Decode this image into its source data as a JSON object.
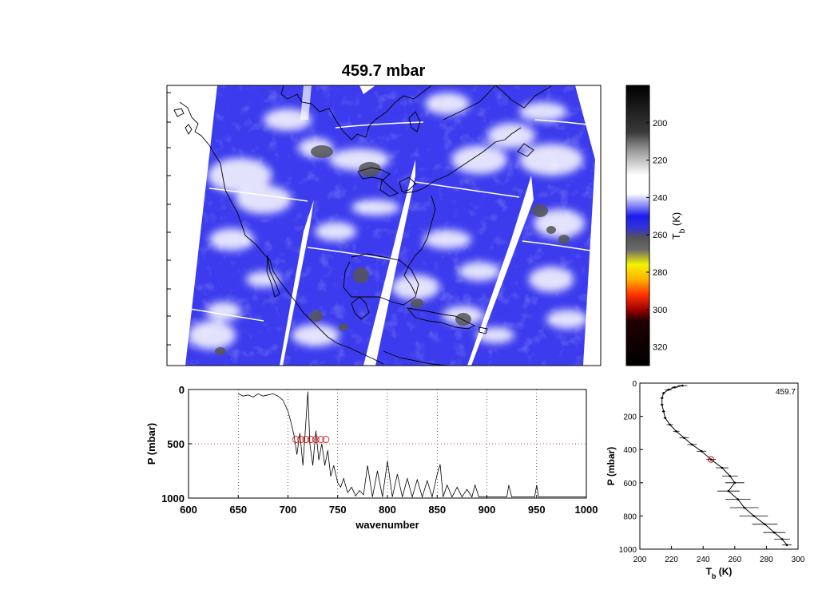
{
  "chart_data": [
    {
      "type": "heatmap",
      "title": "459.7 mbar",
      "colorbar": {
        "label": "T_b (K)",
        "ticks": [
          200,
          220,
          240,
          260,
          280,
          300,
          320
        ],
        "range": [
          180,
          330
        ],
        "colors": [
          {
            "value": 180,
            "color": "#000000"
          },
          {
            "value": 205,
            "color": "#3a3a3a"
          },
          {
            "value": 215,
            "color": "#9a9a9a"
          },
          {
            "value": 228,
            "color": "#ffffff"
          },
          {
            "value": 238,
            "color": "#ffffff"
          },
          {
            "value": 250,
            "color": "#1c1cf0"
          },
          {
            "value": 256,
            "color": "#3232d8"
          },
          {
            "value": 262,
            "color": "#555555"
          },
          {
            "value": 268,
            "color": "#6b6b6b"
          },
          {
            "value": 276,
            "color": "#f3f300"
          },
          {
            "value": 284,
            "color": "#ffb000"
          },
          {
            "value": 292,
            "color": "#ff3300"
          },
          {
            "value": 300,
            "color": "#a00000"
          },
          {
            "value": 306,
            "color": "#200000"
          },
          {
            "value": 330,
            "color": "#000000"
          }
        ]
      },
      "gap_color": "#ffffff",
      "background_color": "#3c3cee",
      "cloud_color": "#ffffff",
      "coastline_color": "#000000"
    },
    {
      "type": "line",
      "xlabel": "wavenumber",
      "ylabel": "P (mbar)",
      "xlim": [
        600,
        1000
      ],
      "ylim": [
        1000,
        0
      ],
      "xticks": [
        600,
        650,
        700,
        750,
        800,
        850,
        900,
        950,
        1000
      ],
      "yticks": [
        0,
        500,
        1000
      ],
      "grid": "dotted",
      "reference_line": 500,
      "marker_color": "#cc0000",
      "marker_x": [
        708,
        713,
        718,
        723,
        728,
        733,
        738
      ],
      "marker_y": 460,
      "series": [
        {
          "color": "#000000",
          "x": [
            650,
            655,
            660,
            665,
            670,
            675,
            680,
            685,
            690,
            695,
            700,
            703,
            706,
            709,
            712,
            715,
            718,
            720,
            722,
            725,
            728,
            731,
            734,
            737,
            740,
            743,
            746,
            750,
            753,
            756,
            760,
            764,
            768,
            772,
            776,
            780,
            785,
            790,
            795,
            800,
            805,
            810,
            815,
            820,
            825,
            830,
            835,
            840,
            845,
            850,
            853,
            856,
            860,
            865,
            870,
            875,
            880,
            885,
            888,
            892,
            900,
            910,
            920,
            922,
            925,
            940,
            948,
            950,
            952,
            960,
            980,
            1000
          ],
          "y": [
            40,
            60,
            50,
            70,
            40,
            60,
            50,
            40,
            60,
            100,
            200,
            300,
            420,
            600,
            400,
            700,
            300,
            20,
            500,
            700,
            380,
            650,
            500,
            700,
            560,
            800,
            700,
            860,
            900,
            820,
            950,
            900,
            980,
            930,
            970,
            700,
            990,
            750,
            990,
            660,
            990,
            780,
            990,
            820,
            990,
            830,
            990,
            840,
            990,
            780,
            690,
            990,
            880,
            990,
            900,
            990,
            920,
            990,
            880,
            990,
            990,
            990,
            990,
            880,
            990,
            990,
            990,
            880,
            990,
            990,
            990,
            990
          ]
        }
      ]
    },
    {
      "type": "scatter",
      "label": "459.7",
      "xlabel": "T_b (K)",
      "ylabel": "P (mbar)",
      "xlim": [
        200,
        300
      ],
      "ylim": [
        1000,
        0
      ],
      "xticks": [
        200,
        220,
        240,
        260,
        280,
        300
      ],
      "yticks": [
        0,
        200,
        400,
        600,
        800,
        1000
      ],
      "highlight": {
        "x": 245,
        "y": 460,
        "color": "#cc0000"
      },
      "points": [
        {
          "x": 227,
          "y": 15,
          "err": 3
        },
        {
          "x": 222,
          "y": 25,
          "err": 2
        },
        {
          "x": 218,
          "y": 40,
          "err": 2
        },
        {
          "x": 215,
          "y": 60,
          "err": 1
        },
        {
          "x": 214,
          "y": 90,
          "err": 1
        },
        {
          "x": 214,
          "y": 130,
          "err": 1
        },
        {
          "x": 215,
          "y": 170,
          "err": 1
        },
        {
          "x": 216,
          "y": 210,
          "err": 1
        },
        {
          "x": 219,
          "y": 250,
          "err": 2
        },
        {
          "x": 223,
          "y": 290,
          "err": 2
        },
        {
          "x": 228,
          "y": 330,
          "err": 3
        },
        {
          "x": 233,
          "y": 370,
          "err": 3
        },
        {
          "x": 239,
          "y": 410,
          "err": 3
        },
        {
          "x": 245,
          "y": 460,
          "err": 3
        },
        {
          "x": 252,
          "y": 510,
          "err": 4
        },
        {
          "x": 257,
          "y": 560,
          "err": 5
        },
        {
          "x": 260,
          "y": 600,
          "err": 6
        },
        {
          "x": 256,
          "y": 650,
          "err": 7
        },
        {
          "x": 262,
          "y": 700,
          "err": 8
        },
        {
          "x": 266,
          "y": 750,
          "err": 9
        },
        {
          "x": 272,
          "y": 800,
          "err": 9
        },
        {
          "x": 279,
          "y": 850,
          "err": 8
        },
        {
          "x": 285,
          "y": 900,
          "err": 7
        },
        {
          "x": 290,
          "y": 940,
          "err": 5
        },
        {
          "x": 293,
          "y": 975,
          "err": 3
        }
      ]
    }
  ]
}
